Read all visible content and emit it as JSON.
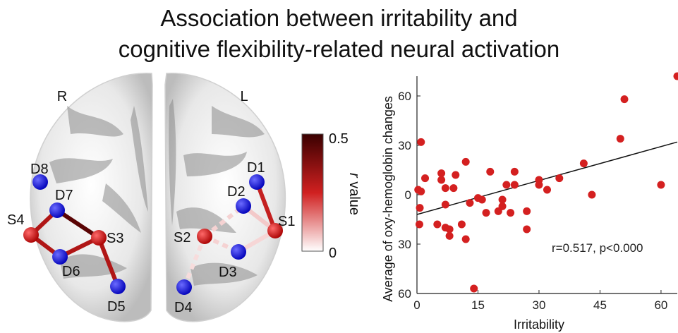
{
  "title": {
    "line1": "Association between irritability and",
    "line2": "cognitive flexibility-related neural activation"
  },
  "brain": {
    "hemisphere_left_label": "R",
    "hemisphere_right_label": "L",
    "sources": [
      "S1",
      "S2",
      "S3",
      "S4"
    ],
    "detectors": [
      "D1",
      "D2",
      "D3",
      "D4",
      "D5",
      "D6",
      "D7",
      "D8"
    ],
    "source_color": "#cc1f1f",
    "detector_color": "#1a1aff"
  },
  "colorbar": {
    "max_label": "0.5",
    "min_label": "0",
    "label_italic": "r",
    "label_rest": " value",
    "color_high": "#3a0000",
    "color_mid": "#d02020",
    "color_low": "#ffffff"
  },
  "chart_data": {
    "type": "scatter",
    "xlabel": "Irritability",
    "ylabel": "Average of oxy-hemoglobin changes",
    "x_ticks": [
      "0",
      "15",
      "30",
      "45",
      "60"
    ],
    "y_ticks": [
      "60",
      "30",
      "0",
      "30",
      "60"
    ],
    "xlim": [
      0,
      64
    ],
    "ylim": [
      -60,
      72
    ],
    "annotation": "r=0.517, p<0.000",
    "point_color": "#d42020",
    "fit_line": {
      "x": [
        0,
        64
      ],
      "y": [
        -12,
        32
      ]
    },
    "points": [
      [
        0.3,
        3
      ],
      [
        1,
        2
      ],
      [
        0.7,
        -8
      ],
      [
        1,
        32
      ],
      [
        0.6,
        -18
      ],
      [
        2,
        10
      ],
      [
        5,
        -18
      ],
      [
        6,
        13
      ],
      [
        6,
        9
      ],
      [
        7,
        -6
      ],
      [
        7,
        4
      ],
      [
        8,
        -21
      ],
      [
        8,
        -25
      ],
      [
        7,
        -20
      ],
      [
        9,
        4
      ],
      [
        9.5,
        12
      ],
      [
        11,
        -18
      ],
      [
        12,
        -27
      ],
      [
        12,
        20
      ],
      [
        13,
        -5
      ],
      [
        14,
        -57
      ],
      [
        15,
        -2
      ],
      [
        16,
        -3
      ],
      [
        17,
        -11
      ],
      [
        18,
        14
      ],
      [
        20,
        -10
      ],
      [
        21,
        -3
      ],
      [
        21,
        -7
      ],
      [
        22,
        6
      ],
      [
        23,
        -11
      ],
      [
        24,
        14
      ],
      [
        24,
        6
      ],
      [
        27,
        -21
      ],
      [
        27,
        -10
      ],
      [
        30,
        9
      ],
      [
        30,
        6
      ],
      [
        32,
        3
      ],
      [
        35,
        10
      ],
      [
        41,
        19
      ],
      [
        43,
        0
      ],
      [
        50,
        34
      ],
      [
        51,
        58
      ],
      [
        60,
        6
      ],
      [
        64,
        72
      ]
    ]
  }
}
